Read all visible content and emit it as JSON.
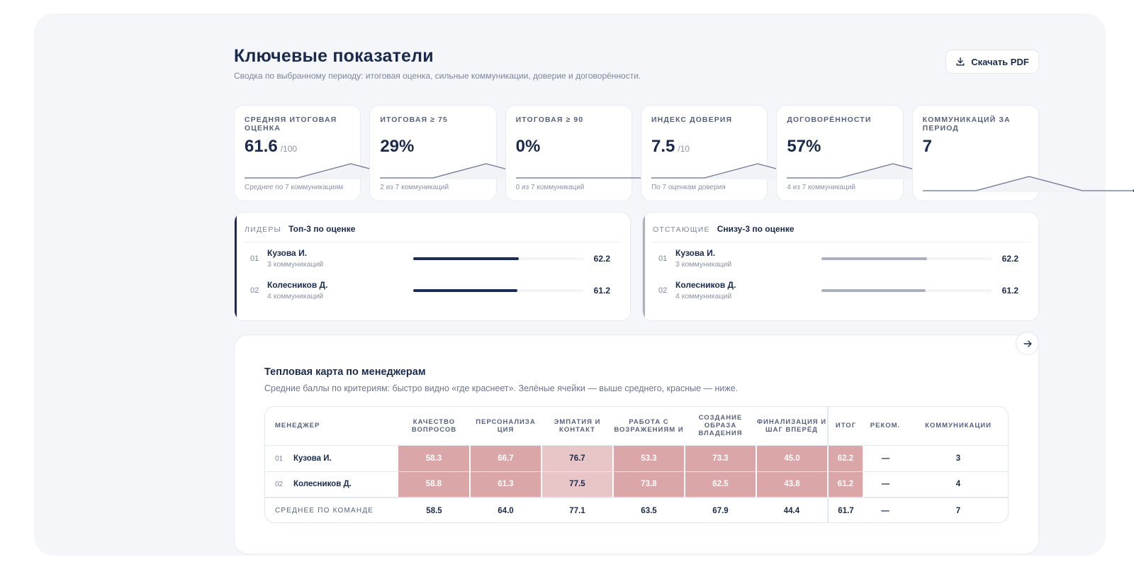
{
  "header": {
    "title": "Ключевые показатели",
    "subtitle": "Сводка по выбранному периоду: итоговая оценка, сильные коммуникации, доверие и договорённости.",
    "pdf_button": "Скачать PDF"
  },
  "kpis": [
    {
      "label": "Средняя итоговая оценка",
      "value": "61.6",
      "unit": "/100",
      "note": "Среднее по 7 коммуникациям",
      "spark": [
        0,
        0,
        1,
        0,
        0
      ]
    },
    {
      "label": "Итоговая ≥ 75",
      "value": "29%",
      "unit": "",
      "note": "2 из 7 коммуникаций",
      "spark": [
        0,
        0,
        1,
        0,
        0
      ]
    },
    {
      "label": "Итоговая ≥ 90",
      "value": "0%",
      "unit": "",
      "note": "0 из 7 коммуникаций",
      "spark": [
        0,
        0,
        0,
        0,
        0
      ]
    },
    {
      "label": "Индекс доверия",
      "value": "7.5",
      "unit": "/10",
      "note": "По 7 оценкам доверия",
      "spark": [
        0,
        0,
        1,
        0,
        0
      ]
    },
    {
      "label": "Договорённости",
      "value": "57%",
      "unit": "",
      "note": "4 из 7 коммуникаций",
      "spark": [
        0,
        0,
        1,
        0,
        0
      ]
    },
    {
      "label": "Коммуникаций за период",
      "value": "7",
      "unit": "",
      "note": "",
      "spark": [
        0,
        0,
        1,
        0,
        0
      ]
    }
  ],
  "leaders": {
    "kicker": "Лидеры",
    "title": "Топ-3 по оценке",
    "accent": "#1b2d57",
    "items": [
      {
        "num": "01",
        "name": "Кузова И.",
        "count": "3 коммуникаций",
        "score": "62.2",
        "fill": 0.622
      },
      {
        "num": "02",
        "name": "Колесников Д.",
        "count": "4 коммуникаций",
        "score": "61.2",
        "fill": 0.612
      }
    ]
  },
  "laggards": {
    "kicker": "Отстающие",
    "title": "Снизу-3 по оценке",
    "accent": "#aab0bd",
    "items": [
      {
        "num": "01",
        "name": "Кузова И.",
        "count": "3 коммуникаций",
        "score": "62.2",
        "fill": 0.622
      },
      {
        "num": "02",
        "name": "Колесников Д.",
        "count": "4 коммуникаций",
        "score": "61.2",
        "fill": 0.612
      }
    ]
  },
  "heatmap": {
    "title": "Тепловая карта по менеджерам",
    "subtitle": "Средние баллы по критериям: быстро видно «где краснеет». Зелёные ячейки — выше среднего, красные — ниже.",
    "columns": {
      "manager": "Менеджер",
      "q": "Качество вопросов",
      "p": "Персонализа ция",
      "e": "Эмпатия и контакт",
      "o": "Работа с возражениям и",
      "v": "Создание образа владения",
      "f": "Финализация и шаг вперёд",
      "total": "Итог",
      "rec": "Реком.",
      "comm": "Коммуникации"
    },
    "rows": [
      {
        "num": "01",
        "name": "Кузова И.",
        "q": "58.3",
        "p": "66.7",
        "e": "76.7",
        "o": "53.3",
        "v": "73.3",
        "f": "45.0",
        "total": "62.2",
        "rec": "—",
        "comm": "3"
      },
      {
        "num": "02",
        "name": "Колесников Д.",
        "q": "58.8",
        "p": "61.3",
        "e": "77.5",
        "o": "73.8",
        "v": "62.5",
        "f": "43.8",
        "total": "61.2",
        "rec": "—",
        "comm": "4"
      }
    ],
    "average": {
      "label": "Среднее по команде",
      "q": "58.5",
      "p": "64.0",
      "e": "77.1",
      "o": "63.5",
      "v": "67.9",
      "f": "44.4",
      "total": "61.7",
      "rec": "—",
      "comm": "7"
    },
    "colors": {
      "strong": "#dba6a8",
      "light": "#e8c6c7",
      "text_on_strong": "#ffffff"
    }
  }
}
